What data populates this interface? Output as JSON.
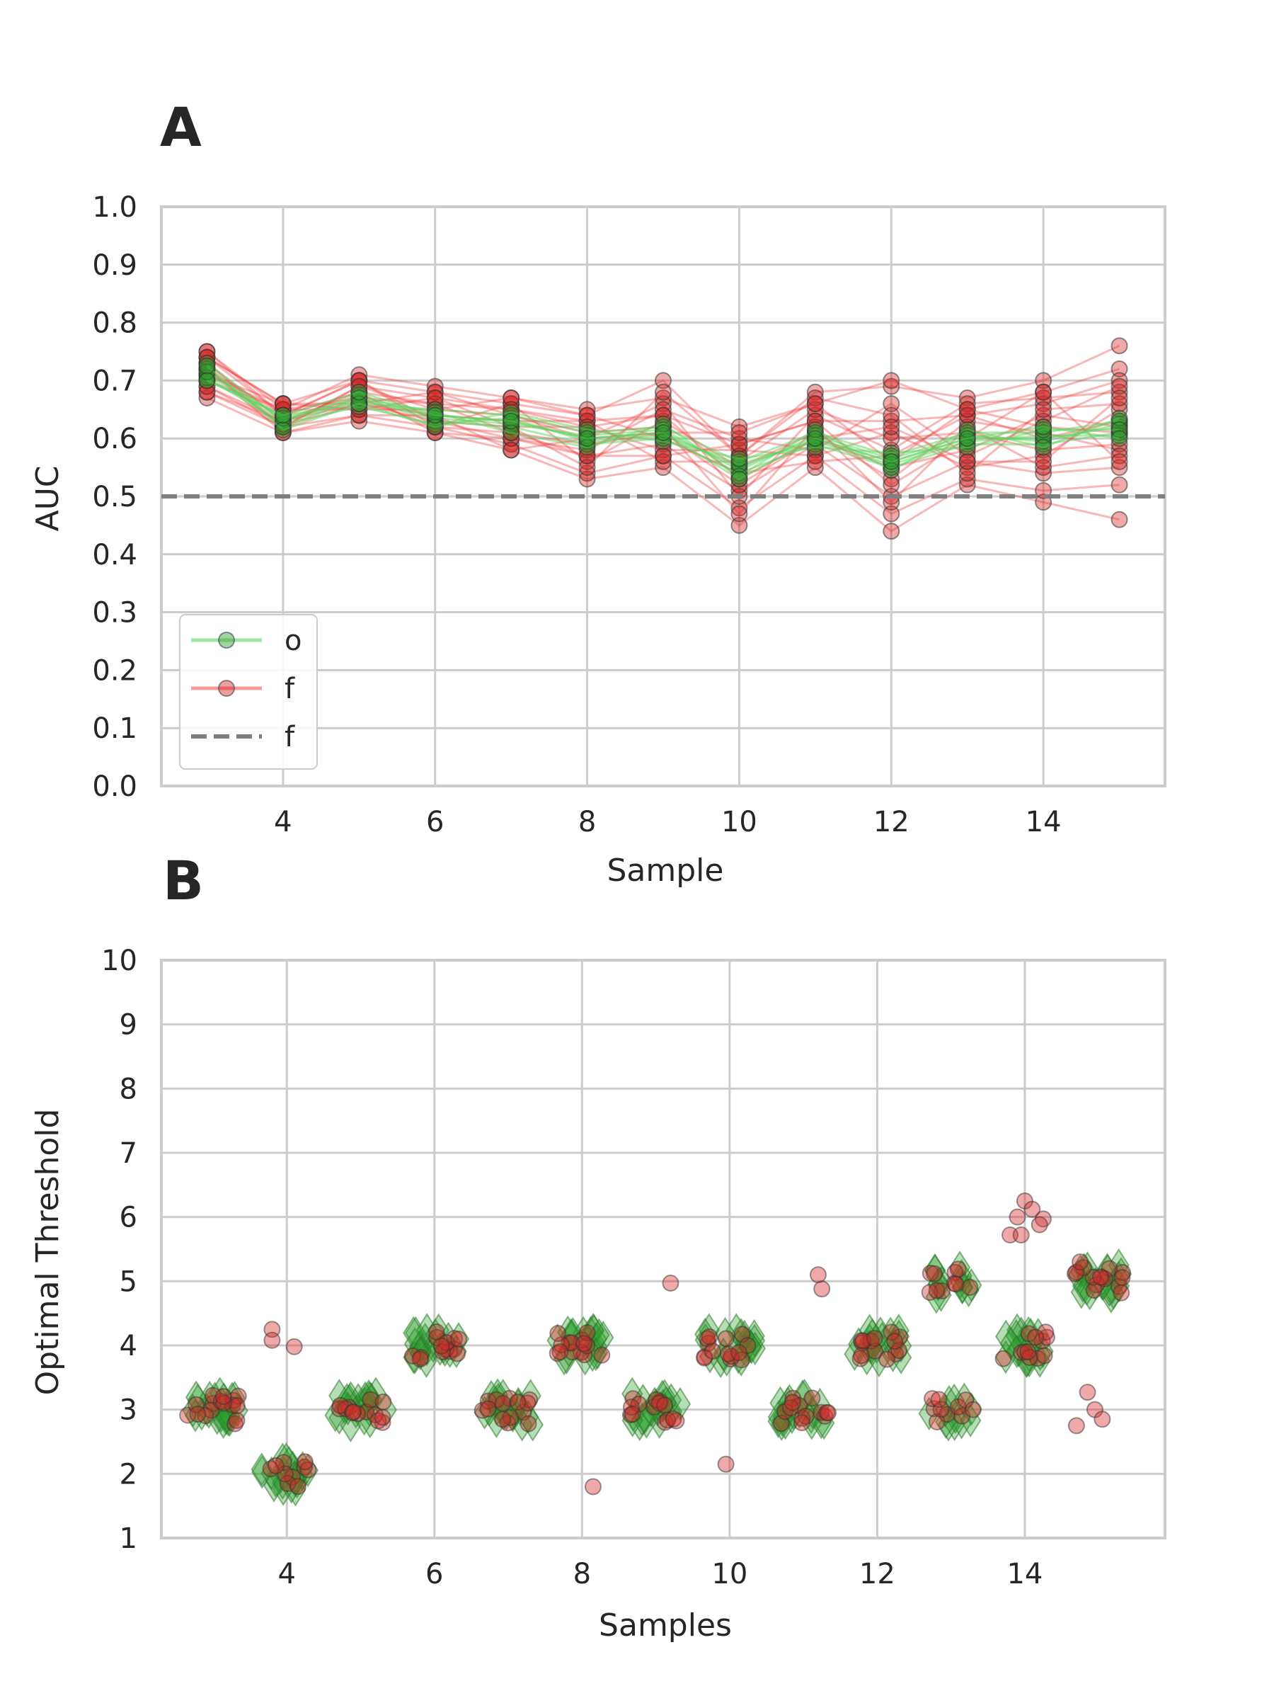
{
  "colors": {
    "green": "#2ca02c",
    "green_line": "#5fd35f",
    "red": "#d62728",
    "red_line": "#ee3333",
    "baseline": "#7f7f7f",
    "grid": "#cccccc",
    "frame": "#cccccc"
  },
  "chart_data": [
    {
      "panel": "A",
      "type": "line",
      "xlabel": "Sample",
      "ylabel": "AUC",
      "xlim": [
        2.4,
        15.6
      ],
      "ylim": [
        0.0,
        1.0
      ],
      "xticks": [
        4,
        6,
        8,
        10,
        12,
        14
      ],
      "yticks": [
        0.0,
        0.1,
        0.2,
        0.3,
        0.4,
        0.5,
        0.6,
        0.7,
        0.8,
        0.9,
        1.0
      ],
      "ytick_labels": [
        "0.0",
        "0.1",
        "0.2",
        "0.3",
        "0.4",
        "0.5",
        "0.6",
        "0.7",
        "0.8",
        "0.9",
        "1.0"
      ],
      "grid": true,
      "legend_position": "lower-left",
      "legend": [
        {
          "label": "o",
          "style": "green-line-marker"
        },
        {
          "label": "f",
          "style": "red-line-marker"
        },
        {
          "label": "f",
          "style": "gray-dashed"
        }
      ],
      "x": [
        3,
        4,
        5,
        6,
        7,
        8,
        9,
        10,
        11,
        12,
        13,
        14,
        15
      ],
      "series": [
        {
          "color": "green",
          "values": [
            0.71,
            0.63,
            0.665,
            0.64,
            0.63,
            0.6,
            0.61,
            0.55,
            0.6,
            0.56,
            0.6,
            0.6,
            0.62
          ]
        },
        {
          "color": "green",
          "values": [
            0.72,
            0.62,
            0.67,
            0.63,
            0.62,
            0.59,
            0.6,
            0.54,
            0.59,
            0.55,
            0.59,
            0.59,
            0.61
          ]
        },
        {
          "color": "green",
          "values": [
            0.7,
            0.64,
            0.66,
            0.65,
            0.64,
            0.61,
            0.62,
            0.56,
            0.61,
            0.57,
            0.61,
            0.61,
            0.63
          ]
        },
        {
          "color": "green",
          "values": [
            0.73,
            0.63,
            0.675,
            0.635,
            0.625,
            0.605,
            0.615,
            0.545,
            0.605,
            0.565,
            0.605,
            0.595,
            0.625
          ]
        },
        {
          "color": "green",
          "values": [
            0.705,
            0.625,
            0.655,
            0.625,
            0.635,
            0.595,
            0.605,
            0.555,
            0.595,
            0.555,
            0.595,
            0.605,
            0.605
          ]
        },
        {
          "color": "green",
          "values": [
            0.715,
            0.635,
            0.67,
            0.645,
            0.61,
            0.585,
            0.625,
            0.535,
            0.615,
            0.545,
            0.615,
            0.585,
            0.635
          ]
        },
        {
          "color": "green",
          "values": [
            0.725,
            0.615,
            0.66,
            0.62,
            0.645,
            0.615,
            0.595,
            0.565,
            0.585,
            0.575,
            0.585,
            0.615,
            0.615
          ]
        },
        {
          "color": "green",
          "values": [
            0.7,
            0.64,
            0.68,
            0.64,
            0.63,
            0.6,
            0.61,
            0.53,
            0.6,
            0.56,
            0.6,
            0.62,
            0.6
          ]
        },
        {
          "color": "red",
          "values": [
            0.74,
            0.66,
            0.7,
            0.68,
            0.66,
            0.64,
            0.7,
            0.57,
            0.68,
            0.69,
            0.67,
            0.7,
            0.76
          ]
        },
        {
          "color": "red",
          "values": [
            0.67,
            0.61,
            0.63,
            0.61,
            0.58,
            0.53,
            0.55,
            0.45,
            0.55,
            0.44,
            0.52,
            0.49,
            0.46
          ]
        },
        {
          "color": "red",
          "values": [
            0.75,
            0.65,
            0.71,
            0.69,
            0.67,
            0.65,
            0.67,
            0.62,
            0.66,
            0.7,
            0.65,
            0.68,
            0.72
          ]
        },
        {
          "color": "red",
          "values": [
            0.68,
            0.62,
            0.64,
            0.62,
            0.59,
            0.54,
            0.57,
            0.48,
            0.57,
            0.47,
            0.53,
            0.51,
            0.52
          ]
        },
        {
          "color": "red",
          "values": [
            0.72,
            0.64,
            0.68,
            0.66,
            0.65,
            0.63,
            0.64,
            0.59,
            0.63,
            0.63,
            0.64,
            0.66,
            0.7
          ]
        },
        {
          "color": "red",
          "values": [
            0.69,
            0.63,
            0.66,
            0.63,
            0.6,
            0.57,
            0.59,
            0.51,
            0.59,
            0.5,
            0.56,
            0.54,
            0.55
          ]
        },
        {
          "color": "red",
          "values": [
            0.73,
            0.62,
            0.69,
            0.65,
            0.64,
            0.6,
            0.66,
            0.5,
            0.64,
            0.58,
            0.66,
            0.67,
            0.68
          ]
        },
        {
          "color": "red",
          "values": [
            0.71,
            0.66,
            0.65,
            0.67,
            0.62,
            0.62,
            0.58,
            0.58,
            0.57,
            0.61,
            0.55,
            0.57,
            0.65
          ]
        },
        {
          "color": "red",
          "values": [
            0.74,
            0.64,
            0.7,
            0.62,
            0.66,
            0.56,
            0.63,
            0.55,
            0.61,
            0.53,
            0.63,
            0.61,
            0.58
          ]
        },
        {
          "color": "red",
          "values": [
            0.7,
            0.65,
            0.67,
            0.66,
            0.61,
            0.59,
            0.61,
            0.52,
            0.6,
            0.55,
            0.58,
            0.64,
            0.62
          ]
        },
        {
          "color": "red",
          "values": [
            0.72,
            0.61,
            0.64,
            0.64,
            0.63,
            0.63,
            0.56,
            0.56,
            0.65,
            0.6,
            0.61,
            0.58,
            0.59
          ]
        },
        {
          "color": "red",
          "values": [
            0.73,
            0.63,
            0.68,
            0.61,
            0.6,
            0.58,
            0.65,
            0.6,
            0.58,
            0.66,
            0.57,
            0.63,
            0.69
          ]
        },
        {
          "color": "red",
          "values": [
            0.69,
            0.62,
            0.66,
            0.68,
            0.64,
            0.61,
            0.62,
            0.47,
            0.62,
            0.49,
            0.62,
            0.55,
            0.57
          ]
        },
        {
          "color": "red",
          "values": [
            0.75,
            0.64,
            0.7,
            0.63,
            0.62,
            0.55,
            0.68,
            0.57,
            0.67,
            0.64,
            0.54,
            0.65,
            0.66
          ]
        },
        {
          "color": "red",
          "values": [
            0.71,
            0.65,
            0.65,
            0.65,
            0.67,
            0.64,
            0.6,
            0.54,
            0.56,
            0.57,
            0.64,
            0.6,
            0.63
          ]
        },
        {
          "color": "red",
          "values": [
            0.68,
            0.63,
            0.67,
            0.62,
            0.61,
            0.57,
            0.57,
            0.59,
            0.63,
            0.52,
            0.6,
            0.68,
            0.56
          ]
        },
        {
          "color": "red",
          "values": [
            0.72,
            0.62,
            0.69,
            0.67,
            0.65,
            0.62,
            0.64,
            0.53,
            0.6,
            0.62,
            0.56,
            0.56,
            0.67
          ]
        },
        {
          "color": "red",
          "values": [
            0.74,
            0.66,
            0.66,
            0.64,
            0.58,
            0.6,
            0.61,
            0.61,
            0.66,
            0.56,
            0.65,
            0.62,
            0.61
          ]
        }
      ],
      "baseline": {
        "y": 0.5,
        "style": "dashed"
      }
    },
    {
      "panel": "B",
      "type": "scatter",
      "xlabel": "Samples",
      "ylabel": "Optimal Threshold",
      "xlim": [
        2.3,
        15.9
      ],
      "ylim": [
        1,
        10
      ],
      "xticks": [
        4,
        6,
        8,
        10,
        12,
        14
      ],
      "yticks": [
        1,
        2,
        3,
        4,
        5,
        6,
        7,
        8,
        9,
        10
      ],
      "grid": true,
      "green_diamonds": [
        {
          "x": 3,
          "y": 3,
          "spread": 0.35,
          "count": 24
        },
        {
          "x": 4,
          "y": 2,
          "spread": 0.35,
          "count": 22
        },
        {
          "x": 5,
          "y": 3,
          "spread": 0.35,
          "count": 22
        },
        {
          "x": 6,
          "y": 4,
          "spread": 0.35,
          "count": 22
        },
        {
          "x": 7,
          "y": 3,
          "spread": 0.35,
          "count": 22
        },
        {
          "x": 8,
          "y": 4,
          "spread": 0.35,
          "count": 22
        },
        {
          "x": 9,
          "y": 3,
          "spread": 0.35,
          "count": 22
        },
        {
          "x": 10,
          "y": 4,
          "spread": 0.35,
          "count": 22
        },
        {
          "x": 11,
          "y": 3,
          "spread": 0.35,
          "count": 22
        },
        {
          "x": 12,
          "y": 4,
          "spread": 0.35,
          "count": 22
        },
        {
          "x": 13,
          "y": 5,
          "spread": 0.3,
          "count": 14
        },
        {
          "x": 13,
          "y": 3,
          "spread": 0.3,
          "count": 12
        },
        {
          "x": 14,
          "y": 4,
          "spread": 0.3,
          "count": 20
        },
        {
          "x": 15,
          "y": 5,
          "spread": 0.35,
          "count": 22
        }
      ],
      "red_clusters": [
        {
          "x": 3,
          "y": 3,
          "spread": 0.35,
          "count": 16
        },
        {
          "x": 4,
          "y": 2,
          "spread": 0.3,
          "count": 10
        },
        {
          "x": 5,
          "y": 3,
          "spread": 0.35,
          "count": 14
        },
        {
          "x": 6,
          "y": 4,
          "spread": 0.35,
          "count": 14
        },
        {
          "x": 7,
          "y": 3,
          "spread": 0.35,
          "count": 14
        },
        {
          "x": 8,
          "y": 4,
          "spread": 0.35,
          "count": 14
        },
        {
          "x": 9,
          "y": 3,
          "spread": 0.35,
          "count": 14
        },
        {
          "x": 10,
          "y": 4,
          "spread": 0.35,
          "count": 14
        },
        {
          "x": 11,
          "y": 3,
          "spread": 0.35,
          "count": 14
        },
        {
          "x": 12,
          "y": 4,
          "spread": 0.35,
          "count": 14
        },
        {
          "x": 13,
          "y": 5,
          "spread": 0.3,
          "count": 10
        },
        {
          "x": 13,
          "y": 3,
          "spread": 0.3,
          "count": 8
        },
        {
          "x": 14,
          "y": 4,
          "spread": 0.3,
          "count": 12
        },
        {
          "x": 15,
          "y": 5,
          "spread": 0.35,
          "count": 14
        }
      ],
      "red_outliers": [
        [
          3.8,
          4.25
        ],
        [
          3.8,
          4.08
        ],
        [
          4.1,
          3.98
        ],
        [
          8.15,
          1.8
        ],
        [
          9.2,
          4.97
        ],
        [
          9.95,
          2.15
        ],
        [
          11.2,
          5.1
        ],
        [
          11.25,
          4.88
        ],
        [
          13.2,
          3.15
        ],
        [
          13.3,
          3.0
        ],
        [
          13.8,
          5.72
        ],
        [
          13.9,
          6.0
        ],
        [
          13.95,
          5.72
        ],
        [
          14.0,
          6.25
        ],
        [
          14.1,
          6.12
        ],
        [
          14.25,
          5.97
        ],
        [
          14.2,
          5.88
        ],
        [
          14.7,
          2.75
        ],
        [
          14.85,
          3.27
        ],
        [
          14.95,
          3.0
        ],
        [
          15.05,
          2.85
        ],
        [
          14.75,
          5.3
        ]
      ]
    }
  ]
}
